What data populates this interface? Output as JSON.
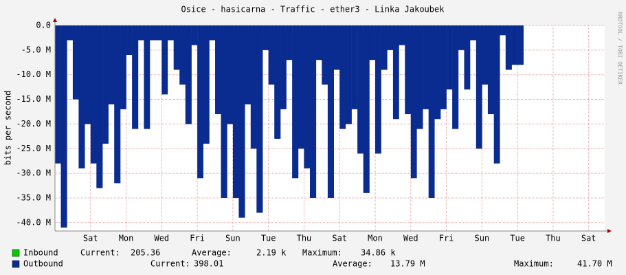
{
  "chart_data": {
    "type": "bar",
    "title": "Osice - hasicarna - Traffic - ether3 - Linka Jakoubek",
    "y_label": "bits per second",
    "side_text": "RRDTOOL / TOBI OETIKER",
    "xlim": [
      0,
      30.9
    ],
    "xticks": [
      {
        "value": 2,
        "label": "Sat"
      },
      {
        "value": 4,
        "label": "Mon"
      },
      {
        "value": 6,
        "label": "Wed"
      },
      {
        "value": 8,
        "label": "Fri"
      },
      {
        "value": 10,
        "label": "Sun"
      },
      {
        "value": 12,
        "label": "Tue"
      },
      {
        "value": 14,
        "label": "Thu"
      },
      {
        "value": 16,
        "label": "Sat"
      },
      {
        "value": 18,
        "label": "Mon"
      },
      {
        "value": 20,
        "label": "Wed"
      },
      {
        "value": 22,
        "label": "Fri"
      },
      {
        "value": 24,
        "label": "Sun"
      },
      {
        "value": 26,
        "label": "Tue"
      },
      {
        "value": 28,
        "label": "Thu"
      },
      {
        "value": 30,
        "label": "Sat"
      }
    ],
    "ylim": [
      -41.7,
      0
    ],
    "yticks": [
      {
        "value": 0,
        "label": "0.0"
      },
      {
        "value": -5,
        "label": "-5.0 M"
      },
      {
        "value": -10,
        "label": "-10.0 M"
      },
      {
        "value": -15,
        "label": "-15.0 M"
      },
      {
        "value": -20,
        "label": "-20.0 M"
      },
      {
        "value": -25,
        "label": "-25.0 M"
      },
      {
        "value": -30,
        "label": "-30.0 M"
      },
      {
        "value": -35,
        "label": "-35.0 M"
      },
      {
        "value": -40,
        "label": "-40.0 M"
      }
    ],
    "grid": true,
    "x": [
      0,
      0.33,
      0.67,
      1,
      1.33,
      1.67,
      2,
      2.33,
      2.67,
      3,
      3.33,
      3.67,
      4,
      4.33,
      4.67,
      5,
      5.33,
      5.67,
      6,
      6.33,
      6.67,
      7,
      7.33,
      7.67,
      8,
      8.33,
      8.67,
      9,
      9.33,
      9.67,
      10,
      10.33,
      10.67,
      11,
      11.33,
      11.67,
      12,
      12.33,
      12.67,
      13,
      13.33,
      13.67,
      14,
      14.33,
      14.67,
      15,
      15.33,
      15.67,
      16,
      16.33,
      16.67,
      17,
      17.33,
      17.67,
      18,
      18.33,
      18.67,
      19,
      19.33,
      19.67,
      20,
      20.33,
      20.67,
      21,
      21.33,
      21.67,
      22,
      22.33,
      22.67,
      23,
      23.33,
      23.67,
      24,
      24.33,
      24.67,
      25,
      25.33,
      25.67,
      26
    ],
    "series": [
      {
        "name": "Inbound",
        "color": "#00cc00",
        "stats": [
          {
            "label": "Current:",
            "value": "205.36"
          },
          {
            "label": "Average:",
            "value": "2.19 k"
          },
          {
            "label": "Maximum:",
            "value": "34.86 k"
          }
        ]
      },
      {
        "name": "Outbound",
        "color": "#0a2c91",
        "stats": [
          {
            "label": "Current:",
            "value": "398.01"
          },
          {
            "label": "Average:",
            "value": "13.79 M"
          },
          {
            "label": "Maximum:",
            "value": "41.70 M"
          }
        ],
        "values": [
          -28,
          -41,
          -3,
          -15,
          -29,
          -20,
          -28,
          -33,
          -24,
          -16,
          -32,
          -17,
          -6,
          -21,
          -3,
          -21,
          -3,
          -3,
          -14,
          -3,
          -9,
          -12,
          -20,
          -4,
          -31,
          -24,
          -3,
          -18,
          -35,
          -20,
          -35,
          -39,
          -16,
          -25,
          -38,
          -5,
          -12,
          -23,
          -17,
          -7,
          -31,
          -25,
          -29,
          -35,
          -7,
          -12,
          -35,
          -9,
          -21,
          -20,
          -17,
          -26,
          -34,
          -7,
          -26,
          -9,
          -5,
          -19,
          -4,
          -18,
          -31,
          -21,
          -17,
          -35,
          -19,
          -17,
          -13,
          -21,
          -5,
          -13,
          -3,
          -25,
          -12,
          -18,
          -28,
          -2,
          -9,
          -8,
          -8
        ]
      }
    ]
  }
}
